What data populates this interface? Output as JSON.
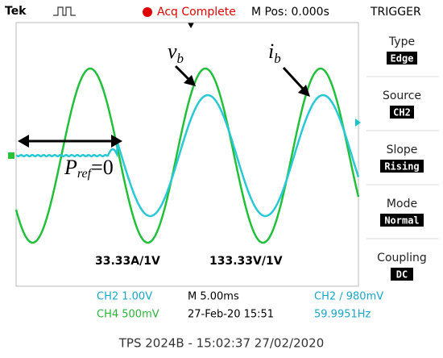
{
  "header": {
    "brand": "Tek",
    "status": "Acq Complete",
    "position": "M Pos: 0.000s",
    "menu_title": "TRIGGER"
  },
  "menu": [
    {
      "label": "Type",
      "value": "Edge"
    },
    {
      "label": "Source",
      "value": "CH2"
    },
    {
      "label": "Slope",
      "value": "Rising"
    },
    {
      "label": "Mode",
      "value": "Normal"
    },
    {
      "label": "Coupling",
      "value": "DC"
    }
  ],
  "annotations": {
    "voltage": {
      "main": "v",
      "sub": "b"
    },
    "current": {
      "main": "i",
      "sub": "b"
    },
    "power": {
      "main": "P",
      "sub": "ref",
      "rest": "=0"
    },
    "current_scale": "33.33A/1V",
    "voltage_scale": "133.33V/1V"
  },
  "status_bar": {
    "ch2": "CH2  1.00V",
    "ch4": "CH4  500mV",
    "timebase": "M 5.00ms",
    "datetime": "27-Feb-20 15:51",
    "trigger": "CH2 ∕ 980mV",
    "frequency": "59.9951Hz"
  },
  "caption": "TPS 2024B - 15:02:37   27/02/2020"
}
